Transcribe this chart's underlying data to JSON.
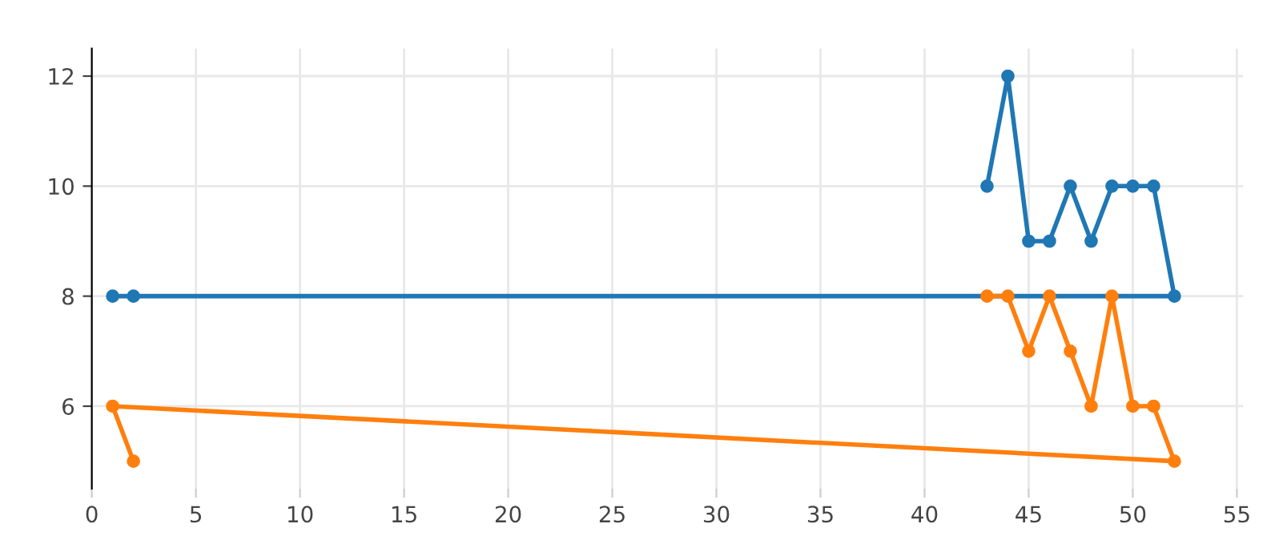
{
  "chart_data": {
    "type": "line",
    "marker": "circle",
    "line_style": "solid",
    "grid": true,
    "xlim": [
      0,
      55.3
    ],
    "ylim": [
      4.5,
      12.5
    ],
    "xticks": [
      0,
      5,
      10,
      15,
      20,
      25,
      30,
      35,
      40,
      45,
      50,
      55
    ],
    "yticks": [
      6,
      8,
      10,
      12
    ],
    "series": [
      {
        "color": "#1f77b4",
        "x": [
          43,
          44,
          45,
          46,
          47,
          48,
          49,
          50,
          51,
          52,
          1,
          2
        ],
        "values": [
          10,
          12,
          9,
          9,
          10,
          9,
          10,
          10,
          10,
          8,
          8,
          8
        ]
      },
      {
        "color": "#ff7f0e",
        "x": [
          43,
          44,
          45,
          46,
          47,
          48,
          49,
          50,
          51,
          52,
          1,
          2
        ],
        "values": [
          8,
          8,
          7,
          8,
          7,
          6,
          8,
          6,
          6,
          5,
          6,
          5
        ]
      }
    ]
  }
}
